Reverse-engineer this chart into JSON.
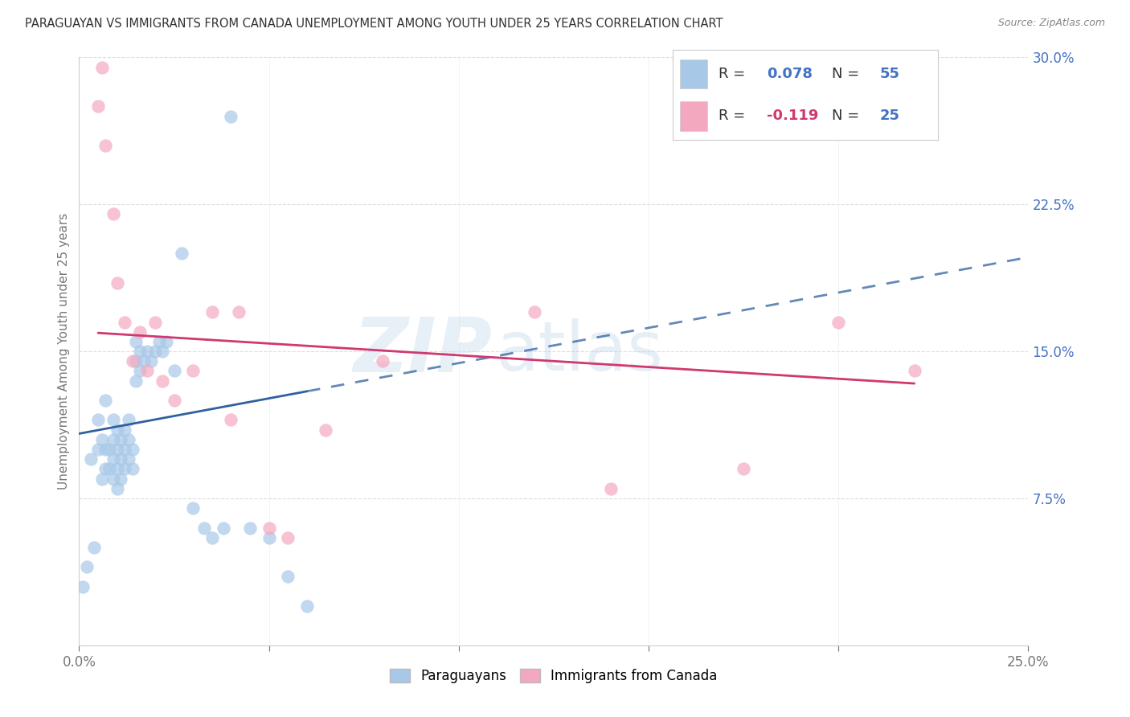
{
  "title": "PARAGUAYAN VS IMMIGRANTS FROM CANADA UNEMPLOYMENT AMONG YOUTH UNDER 25 YEARS CORRELATION CHART",
  "source": "Source: ZipAtlas.com",
  "ylabel": "Unemployment Among Youth under 25 years",
  "xlim": [
    0,
    0.25
  ],
  "ylim": [
    0,
    0.3
  ],
  "yticks": [
    0.0,
    0.075,
    0.15,
    0.225,
    0.3
  ],
  "ytick_labels": [
    "",
    "7.5%",
    "15.0%",
    "22.5%",
    "30.0%"
  ],
  "xtick_positions": [
    0.0,
    0.05,
    0.1,
    0.15,
    0.2,
    0.25
  ],
  "xtick_labels": [
    "0.0%",
    "",
    "",
    "",
    "",
    "25.0%"
  ],
  "R_paraguayan": 0.078,
  "N_paraguayan": 55,
  "R_canada": -0.119,
  "N_canada": 25,
  "blue_color": "#a8c8e8",
  "pink_color": "#f4a8c0",
  "blue_line_color": "#3060a0",
  "pink_line_color": "#d03870",
  "watermark_zip": "ZIP",
  "watermark_atlas": "atlas",
  "paraguayan_x": [
    0.001,
    0.002,
    0.003,
    0.004,
    0.005,
    0.005,
    0.006,
    0.006,
    0.007,
    0.007,
    0.007,
    0.008,
    0.008,
    0.009,
    0.009,
    0.009,
    0.009,
    0.01,
    0.01,
    0.01,
    0.01,
    0.011,
    0.011,
    0.011,
    0.012,
    0.012,
    0.012,
    0.013,
    0.013,
    0.013,
    0.014,
    0.014,
    0.015,
    0.015,
    0.015,
    0.016,
    0.016,
    0.017,
    0.018,
    0.019,
    0.02,
    0.021,
    0.022,
    0.023,
    0.025,
    0.027,
    0.03,
    0.033,
    0.035,
    0.038,
    0.04,
    0.045,
    0.05,
    0.055,
    0.06
  ],
  "paraguayan_y": [
    0.03,
    0.04,
    0.095,
    0.05,
    0.1,
    0.115,
    0.085,
    0.105,
    0.09,
    0.1,
    0.125,
    0.09,
    0.1,
    0.085,
    0.095,
    0.105,
    0.115,
    0.08,
    0.09,
    0.1,
    0.11,
    0.085,
    0.095,
    0.105,
    0.09,
    0.1,
    0.11,
    0.095,
    0.105,
    0.115,
    0.09,
    0.1,
    0.135,
    0.145,
    0.155,
    0.14,
    0.15,
    0.145,
    0.15,
    0.145,
    0.15,
    0.155,
    0.15,
    0.155,
    0.14,
    0.2,
    0.07,
    0.06,
    0.055,
    0.06,
    0.27,
    0.06,
    0.055,
    0.035,
    0.02
  ],
  "canada_x": [
    0.005,
    0.006,
    0.007,
    0.009,
    0.01,
    0.012,
    0.014,
    0.016,
    0.018,
    0.02,
    0.022,
    0.025,
    0.03,
    0.035,
    0.04,
    0.042,
    0.05,
    0.055,
    0.065,
    0.08,
    0.12,
    0.14,
    0.175,
    0.2,
    0.22
  ],
  "canada_y": [
    0.275,
    0.295,
    0.255,
    0.22,
    0.185,
    0.165,
    0.145,
    0.16,
    0.14,
    0.165,
    0.135,
    0.125,
    0.14,
    0.17,
    0.115,
    0.17,
    0.06,
    0.055,
    0.11,
    0.145,
    0.17,
    0.08,
    0.09,
    0.165,
    0.14
  ],
  "blue_intercept": 0.108,
  "blue_slope": 0.36,
  "pink_intercept": 0.16,
  "pink_slope": -0.12
}
